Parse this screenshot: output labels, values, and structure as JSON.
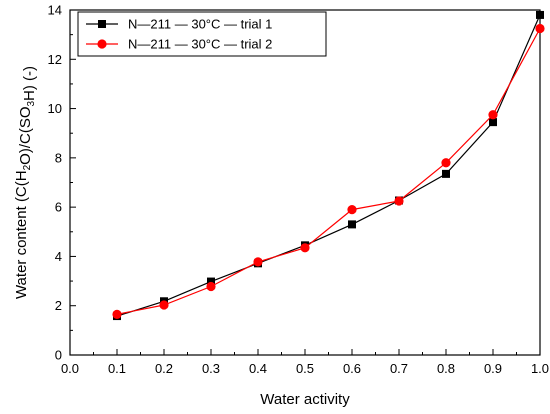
{
  "chart_data": {
    "type": "line",
    "xlabel": "Water activity",
    "ylabel": {
      "parts": [
        {
          "t": "Water content (C(H",
          "sub": false
        },
        {
          "t": "2",
          "sub": true
        },
        {
          "t": "O)/C(SO",
          "sub": false
        },
        {
          "t": "3",
          "sub": true
        },
        {
          "t": "H) (-)",
          "sub": false
        }
      ]
    },
    "xlim": [
      0.0,
      1.0
    ],
    "ylim": [
      0,
      14
    ],
    "xticks": [
      "0.0",
      "0.1",
      "0.2",
      "0.3",
      "0.4",
      "0.5",
      "0.6",
      "0.7",
      "0.8",
      "0.9",
      "1.0"
    ],
    "yticks": [
      "0",
      "2",
      "4",
      "6",
      "8",
      "10",
      "12",
      "14"
    ],
    "grid": false,
    "legend_position": "top-left",
    "series": [
      {
        "name": "N—211 — 30°C — trial 1",
        "color": "#000000",
        "marker": "square",
        "x": [
          0.1,
          0.2,
          0.3,
          0.4,
          0.5,
          0.6,
          0.7,
          0.8,
          0.9,
          1.0
        ],
        "y": [
          1.58,
          2.18,
          2.98,
          3.72,
          4.45,
          5.3,
          6.27,
          7.35,
          9.45,
          13.8
        ]
      },
      {
        "name": "N—211 — 30°C — trial 2",
        "color": "#ff0000",
        "marker": "circle",
        "x": [
          0.1,
          0.2,
          0.3,
          0.4,
          0.5,
          0.6,
          0.7,
          0.8,
          0.9,
          1.0
        ],
        "y": [
          1.65,
          2.03,
          2.78,
          3.78,
          4.35,
          5.9,
          6.25,
          7.8,
          9.75,
          13.25
        ]
      }
    ]
  }
}
